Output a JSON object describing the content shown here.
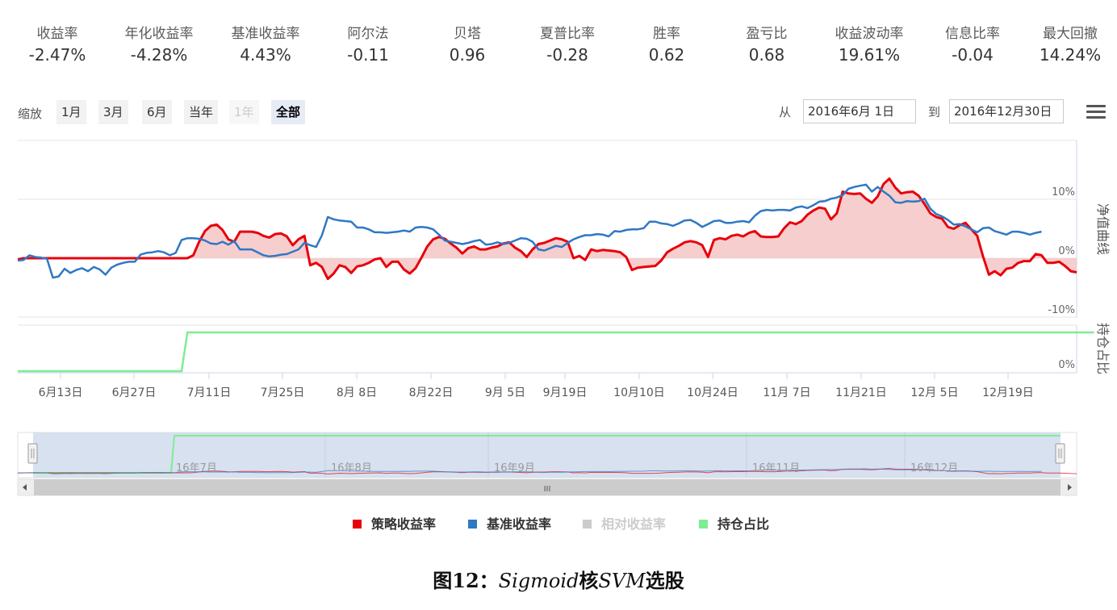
{
  "stats": [
    {
      "label": "收益率",
      "value": "-2.47%"
    },
    {
      "label": "年化收益率",
      "value": "-4.28%"
    },
    {
      "label": "基准收益率",
      "value": "4.43%"
    },
    {
      "label": "阿尔法",
      "value": "-0.11"
    },
    {
      "label": "贝塔",
      "value": "0.96"
    },
    {
      "label": "夏普比率",
      "value": "-0.28"
    },
    {
      "label": "胜率",
      "value": "0.62"
    },
    {
      "label": "盈亏比",
      "value": "0.68"
    },
    {
      "label": "收益波动率",
      "value": "19.61%"
    },
    {
      "label": "信息比率",
      "value": "-0.04"
    },
    {
      "label": "最大回撤",
      "value": "14.24%"
    }
  ],
  "toolbar": {
    "zoom_label": "缩放",
    "zoom_buttons": [
      "1月",
      "3月",
      "6月",
      "当年",
      "1年",
      "全部"
    ],
    "from_label": "从",
    "from_date": "2016年6月 1日",
    "to_label": "到",
    "to_date": "2016年12月30日"
  },
  "navigator": {
    "labels": [
      "16年7月",
      "16年8月",
      "16年9月",
      "16年11月",
      "16年12月"
    ],
    "scroll_glyph": "III"
  },
  "legend": [
    {
      "label": "策略收益率",
      "color": "#e8000b"
    },
    {
      "label": "基准收益率",
      "color": "#2f78c4"
    },
    {
      "label": "相对收益率",
      "color": "#cccccc"
    },
    {
      "label": "持仓占比",
      "color": "#7ded94"
    }
  ],
  "caption": {
    "prefix": "图12：",
    "italic1": "Sigmoid",
    "mid": "核",
    "italic2": "SVM",
    "suffix": "选股"
  },
  "chart_data": {
    "type": "line",
    "panels": [
      {
        "name": "净值曲线",
        "yaxis_ticks": [
          "10%",
          "0%",
          "-10%"
        ],
        "ylim": [
          -10,
          10
        ],
        "series": [
          {
            "name": "策略收益率",
            "color": "#e8000b",
            "fill": "#f5c6c6",
            "values": [
              -0.2,
              0.0,
              0.0,
              0.0,
              0.0,
              0.0,
              0.0,
              0.0,
              0.0,
              0.0,
              0.0,
              0.0,
              0.0,
              0.0,
              0.0,
              0.0,
              0.0,
              0.0,
              0.0,
              0.0,
              0.0,
              0.0,
              0.0,
              0.0,
              0.0,
              0.0,
              0.0,
              0.0,
              0.0,
              0.0,
              0.5,
              2.8,
              4.6,
              5.5,
              5.7,
              4.8,
              3.2,
              2.8,
              4.5,
              4.5,
              4.5,
              4.3,
              3.8,
              3.5,
              4.1,
              4.2,
              3.7,
              2.2,
              3.2,
              3.8,
              -1.2,
              -0.8,
              -1.5,
              -3.5,
              -2.6,
              -1.2,
              -1.5,
              -2.5,
              -1.4,
              -1.2,
              -0.8,
              -0.2,
              0.0,
              -1.5,
              -0.6,
              -0.6,
              -1.9,
              -2.6,
              -1.7,
              0.1,
              2.0,
              3.2,
              3.6,
              3.3,
              2.5,
              1.8,
              0.8,
              1.7,
              2.0,
              1.5,
              1.5,
              1.8,
              2.0,
              2.5,
              2.7,
              1.8,
              1.2,
              0.2,
              1.5,
              2.4,
              2.6,
              3.0,
              3.4,
              3.2,
              2.8,
              0.0,
              0.4,
              -0.3,
              1.5,
              1.2,
              1.4,
              1.3,
              1.2,
              1.0,
              0.2,
              -2.0,
              -1.6,
              -1.5,
              -1.4,
              -1.3,
              -0.4,
              1.0,
              1.6,
              2.1,
              2.7,
              2.9,
              2.7,
              2.2,
              0.2,
              3.1,
              3.4,
              3.2,
              3.8,
              4.0,
              3.7,
              4.3,
              4.6,
              3.7,
              3.6,
              3.6,
              3.7,
              5.1,
              6.1,
              5.8,
              6.3,
              7.4,
              8.1,
              8.6,
              8.4,
              6.6,
              7.6,
              11.3,
              11.0,
              10.9,
              11.0,
              10.1,
              9.4,
              10.5,
              12.6,
              13.5,
              12.0,
              11.0,
              11.2,
              11.3,
              10.6,
              9.2,
              7.6,
              7.0,
              6.7,
              5.3,
              5.0,
              5.6,
              6.0,
              4.9,
              3.8,
              0.3,
              -2.8,
              -2.2,
              -2.9,
              -1.8,
              -1.6,
              -0.8,
              -0.5,
              -0.5,
              0.7,
              0.5,
              -0.8,
              -0.8,
              -0.6,
              -1.3,
              -2.2,
              -2.4
            ]
          },
          {
            "name": "基准收益率",
            "color": "#2f78c4",
            "values": [
              -0.4,
              -0.3,
              0.5,
              0.2,
              0.1,
              -0.1,
              -3.3,
              -3.1,
              -1.8,
              -2.5,
              -2.0,
              -1.7,
              -2.2,
              -1.5,
              -1.9,
              -2.8,
              -1.6,
              -1.1,
              -0.8,
              -0.6,
              -0.6,
              0.6,
              0.9,
              1.0,
              1.2,
              1.0,
              0.5,
              0.9,
              3.1,
              3.4,
              3.4,
              3.3,
              3.0,
              2.5,
              2.4,
              2.8,
              2.3,
              2.9,
              1.5,
              1.5,
              1.5,
              1.0,
              0.5,
              0.3,
              0.4,
              0.6,
              0.7,
              1.1,
              1.5,
              2.6,
              2.2,
              1.9,
              3.9,
              7.0,
              6.6,
              6.4,
              6.3,
              6.2,
              5.2,
              5.2,
              4.9,
              4.4,
              4.4,
              4.3,
              4.4,
              4.5,
              4.7,
              4.5,
              5.2,
              5.3,
              5.2,
              4.9,
              4.0,
              3.0,
              2.8,
              2.6,
              2.4,
              2.6,
              2.9,
              3.1,
              2.3,
              2.4,
              2.7,
              2.4,
              2.6,
              3.0,
              3.4,
              3.3,
              2.8,
              1.5,
              1.3,
              1.7,
              2.1,
              1.9,
              2.6,
              3.2,
              3.6,
              3.9,
              3.9,
              4.1,
              4.0,
              3.7,
              4.6,
              4.5,
              4.8,
              4.9,
              4.9,
              5.1,
              6.2,
              6.2,
              5.9,
              5.8,
              5.5,
              5.9,
              6.4,
              6.5,
              6.0,
              5.3,
              5.8,
              6.3,
              6.4,
              6.0,
              6.0,
              6.2,
              6.3,
              6.1,
              7.2,
              8.0,
              8.2,
              8.1,
              8.2,
              8.2,
              8.1,
              8.6,
              8.8,
              8.5,
              9.0,
              9.6,
              9.7,
              10.1,
              10.3,
              10.7,
              11.8,
              12.1,
              12.3,
              12.5,
              11.3,
              12.1,
              11.3,
              10.6,
              9.5,
              9.4,
              9.7,
              9.6,
              9.7,
              10.1,
              8.4,
              7.5,
              7.1,
              6.5,
              5.7,
              5.8,
              5.4,
              4.9,
              4.4,
              5.1,
              5.2,
              4.6,
              4.3,
              4.0,
              4.5,
              4.5,
              4.3,
              4.0,
              4.3,
              4.5
            ]
          }
        ]
      },
      {
        "name": "持仓占比",
        "yaxis_ticks": [
          "0%"
        ],
        "series": [
          {
            "name": "持仓占比",
            "color": "#7ded94",
            "values": [
              0,
              0,
              0,
              0,
              0,
              0,
              0,
              0,
              0,
              0,
              0,
              0,
              0,
              0,
              0,
              0,
              0,
              0,
              0,
              0,
              0,
              0,
              0,
              0,
              0,
              0,
              0,
              0,
              0,
              1,
              1,
              1,
              1,
              1,
              1,
              1,
              1,
              1,
              1,
              1,
              1,
              1,
              1,
              1,
              1,
              1,
              1,
              1,
              1,
              1,
              1,
              1,
              1,
              1,
              1,
              1,
              1,
              1,
              1,
              1,
              1,
              1,
              1,
              1,
              1,
              1,
              1,
              1,
              1,
              1,
              1,
              1,
              1,
              1,
              1,
              1,
              1,
              1,
              1,
              1,
              1,
              1,
              1,
              1,
              1,
              1,
              1,
              1,
              1,
              1,
              1,
              1,
              1,
              1,
              1,
              1,
              1,
              1,
              1,
              1,
              1,
              1,
              1,
              1,
              1,
              1,
              1,
              1,
              1,
              1,
              1,
              1,
              1,
              1,
              1,
              1,
              1,
              1,
              1,
              1,
              1,
              1,
              1,
              1,
              1,
              1,
              1,
              1,
              1,
              1,
              1,
              1,
              1,
              1,
              1,
              1,
              1,
              1,
              1,
              1,
              1,
              1,
              1,
              1,
              1,
              1,
              1,
              1,
              1,
              1,
              1,
              1,
              1,
              1,
              1,
              1,
              1,
              1,
              1,
              1,
              1,
              1,
              1,
              1,
              1,
              1,
              1,
              1,
              1,
              1,
              1,
              1,
              1,
              1,
              1,
              1,
              1,
              1,
              1,
              1,
              1,
              1,
              1,
              1,
              1
            ]
          }
        ]
      }
    ],
    "x_tick_labels": [
      "6月13日",
      "6月27日",
      "7月11日",
      "7月25日",
      "8月 8日",
      "8月22日",
      "9月 5日",
      "9月19日",
      "10月10日",
      "10月24日",
      "11月 7日",
      "11月21日",
      "12月 5日",
      "12月19日"
    ]
  }
}
